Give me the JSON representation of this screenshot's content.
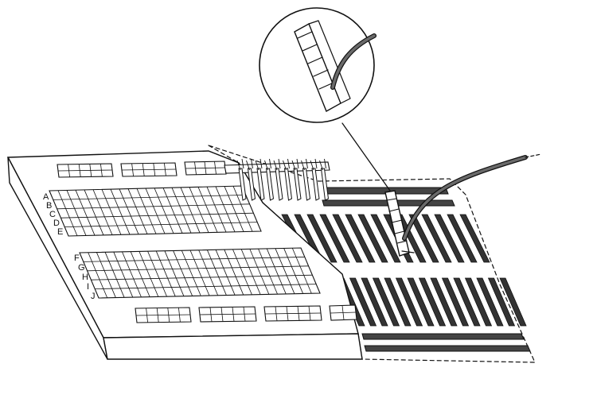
{
  "breadboard": {
    "row_labels_top": [
      "A",
      "B",
      "C",
      "D",
      "E"
    ],
    "row_labels_bottom": [
      "F",
      "G",
      "H",
      "I",
      "J"
    ]
  },
  "colors": {
    "ink": "#111111",
    "strip_fill": "#333333",
    "rail_fill": "#444444",
    "board_fill": "#ffffff"
  }
}
